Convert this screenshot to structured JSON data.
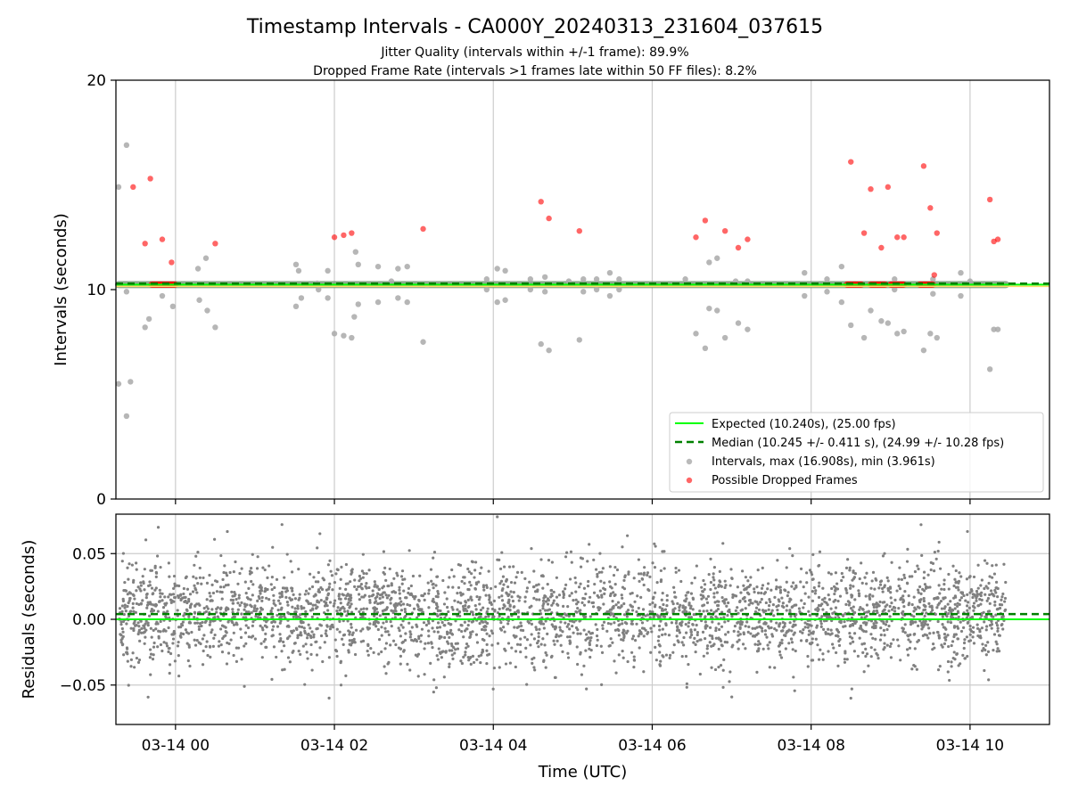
{
  "chart_data": [
    {
      "type": "scatter",
      "title": "Timestamp Intervals - CA000Y_20240313_231604_037615",
      "subtitle_lines": [
        "Jitter Quality (intervals within +/-1 frame): 89.9%",
        "Dropped Frame Rate (intervals >1 frames late within 50 FF files): 8.2%"
      ],
      "xlabel": "",
      "ylabel": "Intervals (seconds)",
      "ylim": [
        0,
        20
      ],
      "yticks": [
        0,
        10,
        20
      ],
      "xlim": [
        "2024-03-13 23:15",
        "2024-03-14 11:00"
      ],
      "xticks": [
        "2024-03-14 00:00",
        "2024-03-14 02:00",
        "2024-03-14 04:00",
        "2024-03-14 06:00",
        "2024-03-14 08:00",
        "2024-03-14 10:00"
      ],
      "grid": "vertical",
      "legend_position": "lower-right",
      "legend": [
        "Expected (10.240s), (25.00 fps)",
        "Median (10.245 +/- 0.411 s), (24.99 +/- 10.28 fps)",
        "Intervals, max (16.908s), min (3.961s)",
        "Possible Dropped Frames"
      ],
      "expected_interval": 10.24,
      "median_interval": 10.245,
      "dense_band": {
        "time_start": "2024-03-13 23:17",
        "time_end": "2024-03-14 10:27",
        "interval": 10.24
      },
      "series": [
        {
          "name": "Intervals, max (16.908s), min (3.961s)",
          "color": "#a9a9a9",
          "points": [
            {
              "t": "2024-03-13 23:17",
              "y": 14.9
            },
            {
              "t": "2024-03-13 23:17",
              "y": 5.5
            },
            {
              "t": "2024-03-13 23:23",
              "y": 16.9
            },
            {
              "t": "2024-03-13 23:23",
              "y": 3.96
            },
            {
              "t": "2024-03-13 23:26",
              "y": 5.6
            },
            {
              "t": "2024-03-13 23:23",
              "y": 9.9
            },
            {
              "t": "2024-03-13 23:37",
              "y": 8.2
            },
            {
              "t": "2024-03-13 23:40",
              "y": 8.6
            },
            {
              "t": "2024-03-13 23:50",
              "y": 9.7
            },
            {
              "t": "2024-03-13 23:58",
              "y": 9.2
            },
            {
              "t": "2024-03-14 00:18",
              "y": 9.5
            },
            {
              "t": "2024-03-14 00:17",
              "y": 11.0
            },
            {
              "t": "2024-03-14 00:23",
              "y": 11.5
            },
            {
              "t": "2024-03-14 00:24",
              "y": 9.0
            },
            {
              "t": "2024-03-14 00:30",
              "y": 8.2
            },
            {
              "t": "2024-03-14 01:31",
              "y": 11.2
            },
            {
              "t": "2024-03-14 01:33",
              "y": 10.9
            },
            {
              "t": "2024-03-14 01:31",
              "y": 9.2
            },
            {
              "t": "2024-03-14 01:35",
              "y": 9.6
            },
            {
              "t": "2024-03-14 01:47",
              "y": 10.3
            },
            {
              "t": "2024-03-14 01:48",
              "y": 10.0
            },
            {
              "t": "2024-03-14 01:55",
              "y": 10.9
            },
            {
              "t": "2024-03-14 01:55",
              "y": 9.6
            },
            {
              "t": "2024-03-14 02:00",
              "y": 7.9
            },
            {
              "t": "2024-03-14 02:07",
              "y": 7.8
            },
            {
              "t": "2024-03-14 02:13",
              "y": 7.7
            },
            {
              "t": "2024-03-14 02:16",
              "y": 11.8
            },
            {
              "t": "2024-03-14 02:18",
              "y": 11.2
            },
            {
              "t": "2024-03-14 02:15",
              "y": 8.7
            },
            {
              "t": "2024-03-14 02:18",
              "y": 9.3
            },
            {
              "t": "2024-03-14 02:33",
              "y": 11.1
            },
            {
              "t": "2024-03-14 02:33",
              "y": 9.4
            },
            {
              "t": "2024-03-14 02:43",
              "y": 10.4
            },
            {
              "t": "2024-03-14 02:48",
              "y": 11.0
            },
            {
              "t": "2024-03-14 02:48",
              "y": 9.6
            },
            {
              "t": "2024-03-14 02:55",
              "y": 11.1
            },
            {
              "t": "2024-03-14 02:55",
              "y": 9.4
            },
            {
              "t": "2024-03-14 03:07",
              "y": 7.5
            },
            {
              "t": "2024-03-14 03:10",
              "y": 10.2
            },
            {
              "t": "2024-03-14 03:55",
              "y": 10.0
            },
            {
              "t": "2024-03-14 03:55",
              "y": 10.5
            },
            {
              "t": "2024-03-14 04:03",
              "y": 11.0
            },
            {
              "t": "2024-03-14 04:03",
              "y": 9.4
            },
            {
              "t": "2024-03-14 04:09",
              "y": 10.9
            },
            {
              "t": "2024-03-14 04:09",
              "y": 9.5
            },
            {
              "t": "2024-03-14 04:28",
              "y": 10.0
            },
            {
              "t": "2024-03-14 04:28",
              "y": 10.5
            },
            {
              "t": "2024-03-14 04:36",
              "y": 7.4
            },
            {
              "t": "2024-03-14 04:42",
              "y": 7.1
            },
            {
              "t": "2024-03-14 04:39",
              "y": 9.9
            },
            {
              "t": "2024-03-14 04:39",
              "y": 10.6
            },
            {
              "t": "2024-03-14 04:57",
              "y": 10.4
            },
            {
              "t": "2024-03-14 05:05",
              "y": 7.6
            },
            {
              "t": "2024-03-14 05:08",
              "y": 9.9
            },
            {
              "t": "2024-03-14 05:08",
              "y": 10.5
            },
            {
              "t": "2024-03-14 05:18",
              "y": 10.0
            },
            {
              "t": "2024-03-14 05:18",
              "y": 10.5
            },
            {
              "t": "2024-03-14 05:28",
              "y": 9.7
            },
            {
              "t": "2024-03-14 05:28",
              "y": 10.8
            },
            {
              "t": "2024-03-14 05:35",
              "y": 10.0
            },
            {
              "t": "2024-03-14 05:35",
              "y": 10.5
            },
            {
              "t": "2024-03-14 06:25",
              "y": 10.5
            },
            {
              "t": "2024-03-14 06:33",
              "y": 7.9
            },
            {
              "t": "2024-03-14 06:40",
              "y": 7.2
            },
            {
              "t": "2024-03-14 06:43",
              "y": 11.3
            },
            {
              "t": "2024-03-14 06:49",
              "y": 11.5
            },
            {
              "t": "2024-03-14 06:43",
              "y": 9.1
            },
            {
              "t": "2024-03-14 06:49",
              "y": 9.0
            },
            {
              "t": "2024-03-14 06:55",
              "y": 7.7
            },
            {
              "t": "2024-03-14 07:03",
              "y": 10.4
            },
            {
              "t": "2024-03-14 07:05",
              "y": 8.4
            },
            {
              "t": "2024-03-14 07:12",
              "y": 8.1
            },
            {
              "t": "2024-03-14 07:12",
              "y": 10.4
            },
            {
              "t": "2024-03-14 07:55",
              "y": 10.8
            },
            {
              "t": "2024-03-14 07:55",
              "y": 9.7
            },
            {
              "t": "2024-03-14 08:12",
              "y": 10.5
            },
            {
              "t": "2024-03-14 08:12",
              "y": 9.9
            },
            {
              "t": "2024-03-14 08:23",
              "y": 11.1
            },
            {
              "t": "2024-03-14 08:23",
              "y": 9.4
            },
            {
              "t": "2024-03-14 08:30",
              "y": 8.3
            },
            {
              "t": "2024-03-14 08:40",
              "y": 7.7
            },
            {
              "t": "2024-03-14 08:45",
              "y": 9.0
            },
            {
              "t": "2024-03-14 08:53",
              "y": 8.5
            },
            {
              "t": "2024-03-14 08:58",
              "y": 8.4
            },
            {
              "t": "2024-03-14 09:05",
              "y": 7.9
            },
            {
              "t": "2024-03-14 09:10",
              "y": 8.0
            },
            {
              "t": "2024-03-14 09:03",
              "y": 10.5
            },
            {
              "t": "2024-03-14 09:03",
              "y": 10.0
            },
            {
              "t": "2024-03-14 09:25",
              "y": 7.1
            },
            {
              "t": "2024-03-14 09:30",
              "y": 7.9
            },
            {
              "t": "2024-03-14 09:35",
              "y": 7.7
            },
            {
              "t": "2024-03-14 09:32",
              "y": 9.8
            },
            {
              "t": "2024-03-14 09:32",
              "y": 10.5
            },
            {
              "t": "2024-03-14 09:53",
              "y": 10.8
            },
            {
              "t": "2024-03-14 09:53",
              "y": 9.7
            },
            {
              "t": "2024-03-14 10:00",
              "y": 10.4
            },
            {
              "t": "2024-03-14 10:15",
              "y": 6.2
            },
            {
              "t": "2024-03-14 10:18",
              "y": 8.1
            },
            {
              "t": "2024-03-14 10:21",
              "y": 8.1
            }
          ]
        },
        {
          "name": "Possible Dropped Frames",
          "color": "#ff0000",
          "points": [
            {
              "t": "2024-03-13 23:28",
              "y": 14.9
            },
            {
              "t": "2024-03-13 23:41",
              "y": 15.3
            },
            {
              "t": "2024-03-13 23:37",
              "y": 12.2
            },
            {
              "t": "2024-03-13 23:50",
              "y": 12.4
            },
            {
              "t": "2024-03-13 23:57",
              "y": 11.3
            },
            {
              "t": "2024-03-14 00:30",
              "y": 12.2
            },
            {
              "t": "2024-03-14 02:00",
              "y": 12.5
            },
            {
              "t": "2024-03-14 02:07",
              "y": 12.6
            },
            {
              "t": "2024-03-14 02:13",
              "y": 12.7
            },
            {
              "t": "2024-03-14 03:07",
              "y": 12.9
            },
            {
              "t": "2024-03-14 04:36",
              "y": 14.2
            },
            {
              "t": "2024-03-14 04:42",
              "y": 13.4
            },
            {
              "t": "2024-03-14 05:05",
              "y": 12.8
            },
            {
              "t": "2024-03-14 06:33",
              "y": 12.5
            },
            {
              "t": "2024-03-14 06:40",
              "y": 13.3
            },
            {
              "t": "2024-03-14 06:55",
              "y": 12.8
            },
            {
              "t": "2024-03-14 07:05",
              "y": 12.0
            },
            {
              "t": "2024-03-14 07:12",
              "y": 12.4
            },
            {
              "t": "2024-03-14 08:30",
              "y": 16.1
            },
            {
              "t": "2024-03-14 08:40",
              "y": 12.7
            },
            {
              "t": "2024-03-14 08:45",
              "y": 14.8
            },
            {
              "t": "2024-03-14 08:53",
              "y": 12.0
            },
            {
              "t": "2024-03-14 08:58",
              "y": 14.9
            },
            {
              "t": "2024-03-14 09:05",
              "y": 12.5
            },
            {
              "t": "2024-03-14 09:10",
              "y": 12.5
            },
            {
              "t": "2024-03-14 09:25",
              "y": 15.9
            },
            {
              "t": "2024-03-14 09:30",
              "y": 13.9
            },
            {
              "t": "2024-03-14 09:35",
              "y": 12.7
            },
            {
              "t": "2024-03-14 09:33",
              "y": 10.7
            },
            {
              "t": "2024-03-14 10:15",
              "y": 14.3
            },
            {
              "t": "2024-03-14 10:18",
              "y": 12.3
            },
            {
              "t": "2024-03-14 10:21",
              "y": 12.4
            }
          ],
          "clusters": [
            {
              "t_start": "2024-03-13 23:42",
              "t_end": "2024-03-14 00:00",
              "y": 10.24
            },
            {
              "t_start": "2024-03-14 08:27",
              "t_end": "2024-03-14 08:39",
              "y": 10.24
            },
            {
              "t_start": "2024-03-14 08:45",
              "t_end": "2024-03-14 08:57",
              "y": 10.24
            },
            {
              "t_start": "2024-03-14 09:00",
              "t_end": "2024-03-14 09:10",
              "y": 10.24
            },
            {
              "t_start": "2024-03-14 09:22",
              "t_end": "2024-03-14 09:33",
              "y": 10.24
            }
          ]
        }
      ]
    },
    {
      "type": "scatter",
      "title": "",
      "xlabel": "Time (UTC)",
      "ylabel": "Residuals (seconds)",
      "ylim": [
        -0.08,
        0.08
      ],
      "yticks": [
        -0.05,
        0.0,
        0.05
      ],
      "ytick_labels": [
        "−0.05",
        "0.00",
        "0.05"
      ],
      "xlim": [
        "2024-03-13 23:15",
        "2024-03-14 11:00"
      ],
      "xticks": [
        "2024-03-14 00:00",
        "2024-03-14 02:00",
        "2024-03-14 04:00",
        "2024-03-14 06:00",
        "2024-03-14 08:00",
        "2024-03-14 10:00"
      ],
      "xtick_labels": [
        "03-14 00",
        "03-14 02",
        "03-14 04",
        "03-14 06",
        "03-14 08",
        "03-14 10"
      ],
      "grid": "both",
      "expected_residual": 0.0,
      "median_residual": 0.004,
      "residual_cloud": {
        "color": "#808080",
        "time_start": "2024-03-13 23:17",
        "time_end": "2024-03-14 10:27",
        "mean": 0.004,
        "std": 0.019,
        "min": -0.06,
        "max": 0.078
      },
      "outliers": [
        {
          "t": "2024-03-14 04:03",
          "y": 0.078
        },
        {
          "t": "2024-03-14 09:23",
          "y": 0.072
        },
        {
          "t": "2024-03-13 23:47",
          "y": 0.07
        },
        {
          "t": "2024-03-14 08:30",
          "y": -0.06
        },
        {
          "t": "2024-03-14 00:52",
          "y": -0.051
        },
        {
          "t": "2024-03-14 03:17",
          "y": -0.052
        },
        {
          "t": "2024-03-14 02:05",
          "y": -0.05
        },
        {
          "t": "2024-03-14 10:14",
          "y": -0.046
        }
      ]
    }
  ]
}
